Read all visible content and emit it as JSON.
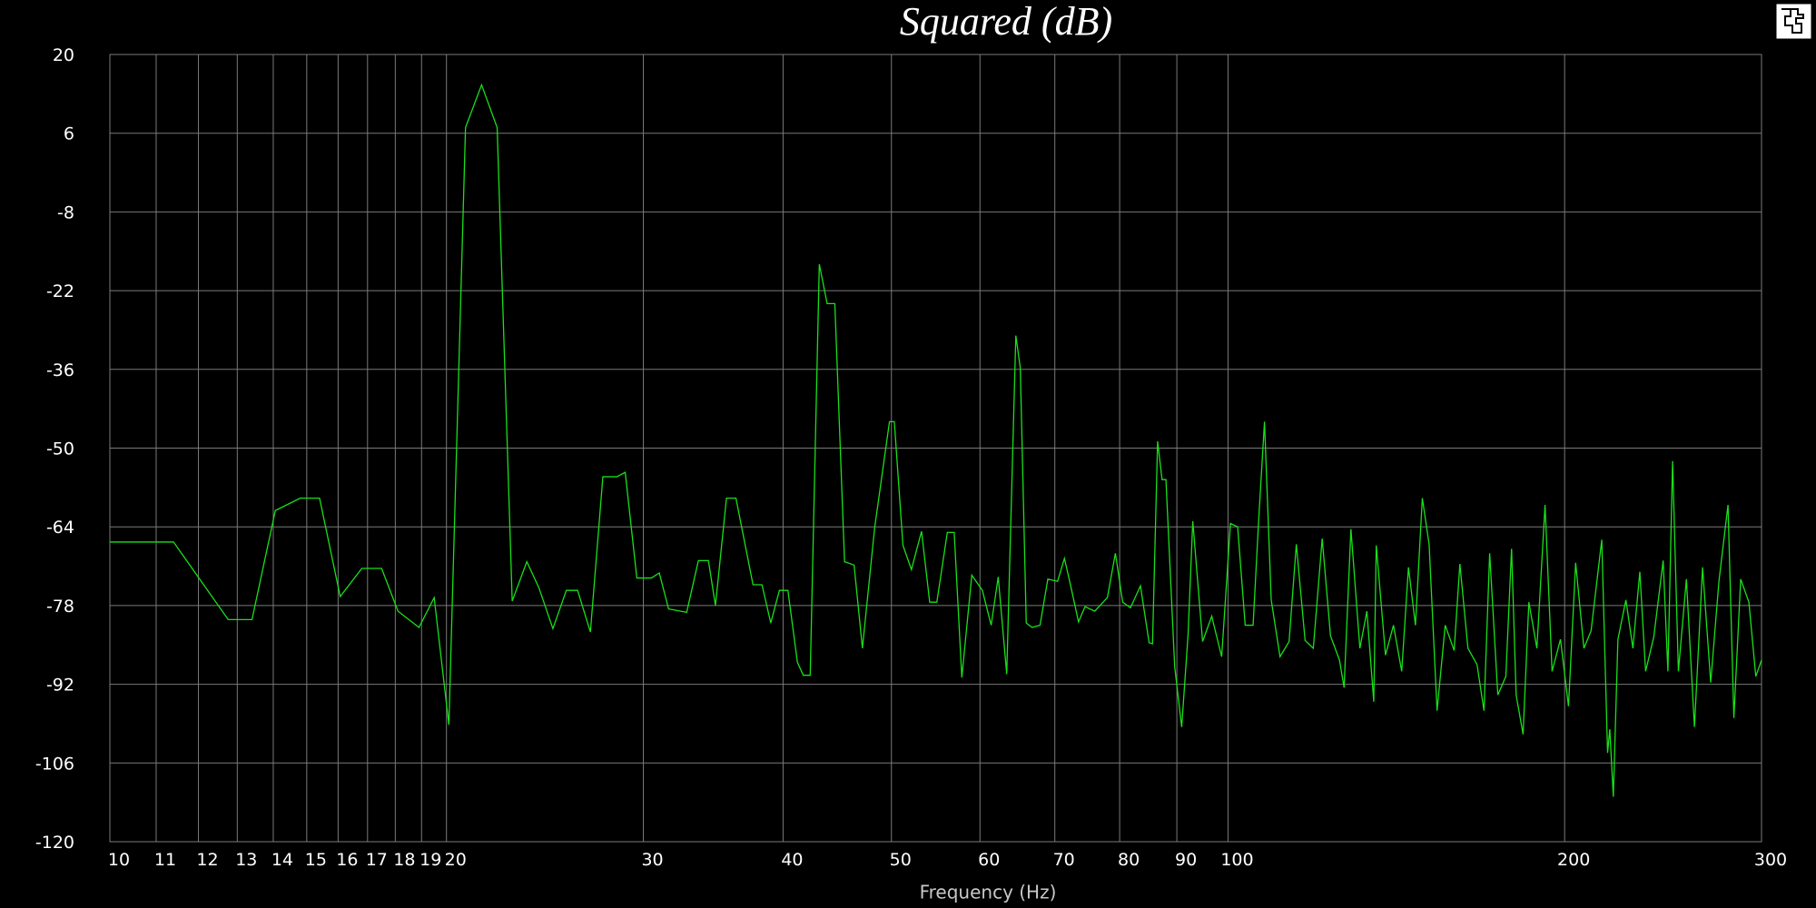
{
  "chart_data": {
    "type": "line",
    "title": "Squared (dB)",
    "x_label": "Frequency (Hz)",
    "xscale": "log",
    "grid": true,
    "xlim": [
      10,
      300
    ],
    "xticks": [
      10,
      11,
      12,
      13,
      14,
      15,
      16,
      17,
      18,
      19,
      20,
      30,
      40,
      50,
      60,
      70,
      80,
      90,
      100,
      200,
      300
    ],
    "ylim": [
      -120,
      20
    ],
    "yticks": [
      -120,
      -106,
      -92,
      -78,
      -64,
      -50,
      -36,
      -22,
      -8,
      6,
      20
    ],
    "series": [
      {
        "color": "#19e019",
        "x": [
          10,
          11.4,
          12.76,
          13.4,
          14.06,
          14.8,
          15.4,
          16.07,
          16.8,
          17.5,
          18.1,
          18.9,
          19.5,
          20.1,
          20.8,
          21.5,
          22.2,
          22.9,
          23.6,
          24.2,
          24.9,
          25.6,
          26.2,
          26.9,
          27.6,
          28.4,
          28.9,
          29.6,
          30.5,
          31.0,
          31.6,
          32.8,
          33.6,
          34.3,
          34.8,
          35.6,
          36.3,
          37.6,
          38.3,
          39.0,
          39.7,
          40.4,
          41.2,
          41.7,
          42.3,
          43.1,
          43.8,
          44.5,
          45.4,
          46.3,
          47.1,
          48.3,
          49.8,
          50.3,
          51.2,
          52.1,
          53.2,
          54.1,
          54.9,
          56.1,
          56.9,
          57.8,
          59.0,
          60.3,
          61.4,
          62.3,
          63.4,
          64.6,
          65.2,
          66.0,
          66.8,
          67.9,
          69.0,
          70.4,
          71.4,
          72.4,
          73.5,
          74.5,
          76.0,
          78.0,
          79.3,
          80.5,
          81.8,
          83.5,
          85.0,
          85.6,
          86.5,
          87.3,
          88.0,
          89.6,
          90.9,
          92.1,
          93.0,
          94.9,
          96.7,
          98.7,
          100.5,
          102.0,
          103.6,
          105.3,
          106.5,
          107.8,
          109.3,
          111.3,
          113.4,
          115.1,
          117.2,
          119.2,
          121.4,
          123.5,
          125.8,
          127.0,
          128.8,
          131.2,
          133.1,
          135.0,
          135.7,
          138.3,
          140.6,
          143.0,
          145.0,
          147.1,
          149.2,
          151.3,
          153.8,
          156.4,
          159.3,
          161.2,
          163.9,
          167.0,
          169.4,
          171.4,
          174.3,
          177.2,
          179.3,
          181.0,
          183.6,
          185.8,
          188.9,
          192.1,
          194.9,
          198.3,
          201.6,
          204.6,
          208.1,
          211.2,
          215.9,
          218.5,
          219.5,
          221.1,
          223.2,
          226.9,
          230.2,
          233.5,
          236.3,
          240.3,
          245.0,
          247.4,
          249.8,
          252.8,
          257.0,
          261.3,
          265.7,
          270.2,
          274.8,
          280.0,
          283.4,
          287.4,
          292.3,
          296.5,
          300
        ],
        "values": [
          -66.7,
          -66.7,
          -80.5,
          -80.5,
          -61.1,
          -58.9,
          -58.9,
          -76.4,
          -71.4,
          -71.4,
          -79.0,
          -81.9,
          -76.6,
          -99.2,
          7.0,
          14.6,
          7.0,
          -77.2,
          -70.2,
          -74.9,
          -82.1,
          -75.3,
          -75.3,
          -82.7,
          -55.1,
          -55.1,
          -54.3,
          -73.1,
          -73.1,
          -72.2,
          -78.6,
          -79.2,
          -70.0,
          -70.0,
          -78.0,
          -58.9,
          -58.9,
          -74.3,
          -74.3,
          -81.1,
          -75.3,
          -75.3,
          -88.1,
          -90.4,
          -90.4,
          -17.3,
          -24.3,
          -24.3,
          -70.2,
          -70.8,
          -85.6,
          -64.2,
          -45.3,
          -45.3,
          -67.3,
          -71.6,
          -64.8,
          -77.4,
          -77.4,
          -65.0,
          -65.0,
          -90.8,
          -72.6,
          -75.3,
          -81.5,
          -72.9,
          -90.2,
          -30.0,
          -35.8,
          -81.1,
          -81.9,
          -81.5,
          -73.3,
          -73.7,
          -69.6,
          -74.9,
          -80.9,
          -78.2,
          -79.0,
          -76.6,
          -68.7,
          -77.4,
          -78.4,
          -74.5,
          -84.6,
          -84.8,
          -48.8,
          -55.6,
          -55.6,
          -88.9,
          -99.6,
          -83.2,
          -63.0,
          -84.4,
          -79.9,
          -87.1,
          -63.4,
          -64.0,
          -81.5,
          -81.5,
          -63.0,
          -45.3,
          -77.0,
          -87.1,
          -84.4,
          -67.1,
          -84.2,
          -85.6,
          -66.1,
          -83.4,
          -87.7,
          -92.6,
          -64.4,
          -85.6,
          -79.0,
          -95.1,
          -67.3,
          -86.8,
          -81.5,
          -89.7,
          -71.2,
          -81.5,
          -58.9,
          -67.1,
          -96.7,
          -81.5,
          -86.0,
          -70.6,
          -85.6,
          -88.5,
          -96.7,
          -68.7,
          -93.9,
          -90.6,
          -67.9,
          -93.9,
          -100.9,
          -77.4,
          -85.6,
          -60.1,
          -89.7,
          -84.0,
          -95.9,
          -70.4,
          -85.6,
          -82.5,
          -66.3,
          -104.2,
          -100.0,
          -112.0,
          -84.0,
          -77.0,
          -85.6,
          -72.0,
          -89.7,
          -83.6,
          -70.0,
          -89.7,
          -52.3,
          -89.7,
          -73.3,
          -99.6,
          -71.2,
          -91.7,
          -73.7,
          -60.1,
          -98.0,
          -73.3,
          -77.4,
          -90.6,
          -87.7
        ]
      }
    ]
  }
}
